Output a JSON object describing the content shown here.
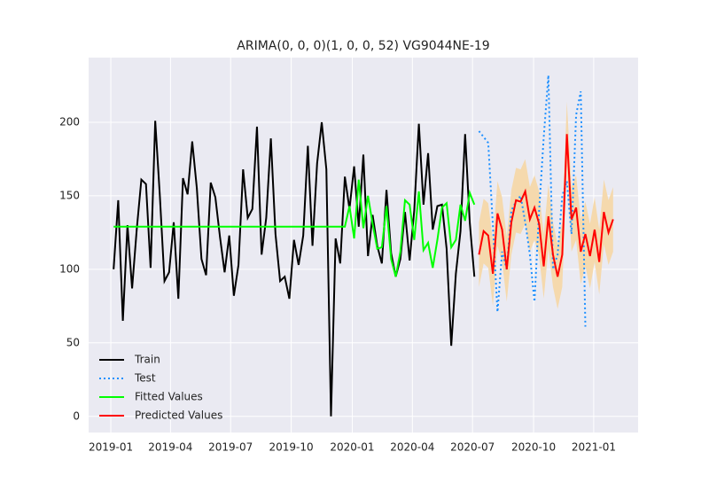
{
  "chart_data": {
    "type": "line",
    "title": "ARIMA(0, 0, 0)(1, 0, 0, 52) VG9044NE-19",
    "x": [
      0,
      1,
      2,
      3,
      4,
      5,
      6,
      7,
      8,
      9,
      10,
      11,
      12,
      13,
      14,
      15,
      16,
      17,
      18,
      19,
      20,
      21,
      22,
      23,
      24,
      25,
      26,
      27,
      28,
      29,
      30,
      31,
      32,
      33,
      34,
      35,
      36,
      37,
      38,
      39,
      40,
      41,
      42,
      43,
      44,
      45,
      46,
      47,
      48,
      49,
      50,
      51,
      52,
      53,
      54,
      55,
      56,
      57,
      58,
      59,
      60,
      61,
      62,
      63,
      64,
      65,
      66,
      67,
      68,
      69,
      70,
      71,
      72,
      73,
      74,
      75,
      76,
      77,
      78,
      79,
      80,
      81,
      82,
      83,
      84,
      85,
      86,
      87,
      88,
      89,
      90,
      91,
      92,
      93,
      94,
      95,
      96,
      97,
      98,
      99,
      100,
      101,
      102,
      103,
      104,
      105,
      106,
      107,
      108
    ],
    "series": [
      {
        "name": "Train",
        "color": "#000000",
        "dash": "solid",
        "values": [
          100,
          147,
          65,
          130,
          87,
          127,
          161,
          158,
          101,
          201,
          150,
          92,
          98,
          132,
          80,
          162,
          151,
          187,
          155,
          107,
          96,
          159,
          149,
          122,
          98,
          123,
          82,
          103,
          168,
          135,
          141,
          197,
          110,
          135,
          189,
          124,
          92,
          95,
          80,
          120,
          103,
          123,
          184,
          116,
          172,
          200,
          168,
          0,
          121,
          104,
          163,
          141,
          170,
          129,
          178,
          109,
          137,
          116,
          104,
          154,
          111,
          95,
          107,
          139,
          106,
          140,
          199,
          144,
          179,
          127,
          143,
          144,
          114,
          48,
          97,
          126,
          192,
          132,
          95,
          null,
          null,
          null,
          null,
          null,
          null,
          null,
          null,
          null,
          null,
          null,
          null,
          null,
          null,
          null,
          null,
          null,
          null,
          null,
          null,
          null,
          null,
          null,
          null,
          null,
          null,
          null,
          null,
          null,
          null
        ]
      },
      {
        "name": "Test",
        "color": "#1e90ff",
        "dash": "dotted",
        "values": [
          null,
          null,
          null,
          null,
          null,
          null,
          null,
          null,
          null,
          null,
          null,
          null,
          null,
          null,
          null,
          null,
          null,
          null,
          null,
          null,
          null,
          null,
          null,
          null,
          null,
          null,
          null,
          null,
          null,
          null,
          null,
          null,
          null,
          null,
          null,
          null,
          null,
          null,
          null,
          null,
          null,
          null,
          null,
          null,
          null,
          null,
          null,
          null,
          null,
          null,
          null,
          null,
          null,
          null,
          null,
          null,
          null,
          null,
          null,
          null,
          null,
          null,
          null,
          null,
          null,
          null,
          null,
          null,
          null,
          null,
          null,
          null,
          null,
          null,
          null,
          null,
          null,
          null,
          null,
          194,
          190,
          186,
          130,
          71,
          112,
          100,
          140,
          146,
          150,
          132,
          110,
          78,
          140,
          190,
          232,
          100,
          110,
          150,
          160,
          124,
          205,
          221,
          61,
          null,
          null,
          null,
          null,
          null,
          null
        ]
      },
      {
        "name": "Fitted Values",
        "color": "#00ff00",
        "dash": "solid",
        "values": [
          129,
          129,
          129,
          129,
          129,
          129,
          129,
          129,
          129,
          129,
          129,
          129,
          129,
          129,
          129,
          129,
          129,
          129,
          129,
          129,
          129,
          129,
          129,
          129,
          129,
          129,
          129,
          129,
          129,
          129,
          129,
          129,
          129,
          129,
          129,
          129,
          129,
          129,
          129,
          129,
          129,
          129,
          129,
          129,
          129,
          129,
          129,
          129,
          129,
          129,
          129,
          143,
          121,
          161,
          128,
          150,
          131,
          114,
          115,
          143,
          107,
          95,
          112,
          147,
          144,
          120,
          153,
          113,
          118,
          101,
          120,
          142,
          145,
          115,
          120,
          144,
          133,
          152,
          144,
          null,
          null,
          null,
          null,
          null,
          null,
          null,
          null,
          null,
          null,
          null,
          null,
          null,
          null,
          null,
          null,
          null,
          null,
          null,
          null,
          null,
          null,
          null,
          null,
          null,
          null,
          null,
          null,
          null,
          null
        ]
      },
      {
        "name": "Predicted Values",
        "color": "#ff0000",
        "dash": "solid",
        "band_color": "#f5d9ad",
        "values": [
          null,
          null,
          null,
          null,
          null,
          null,
          null,
          null,
          null,
          null,
          null,
          null,
          null,
          null,
          null,
          null,
          null,
          null,
          null,
          null,
          null,
          null,
          null,
          null,
          null,
          null,
          null,
          null,
          null,
          null,
          null,
          null,
          null,
          null,
          null,
          null,
          null,
          null,
          null,
          null,
          null,
          null,
          null,
          null,
          null,
          null,
          null,
          null,
          null,
          null,
          null,
          null,
          null,
          null,
          null,
          null,
          null,
          null,
          null,
          null,
          null,
          null,
          null,
          null,
          null,
          null,
          null,
          null,
          null,
          null,
          null,
          null,
          null,
          null,
          null,
          null,
          null,
          null,
          null,
          110,
          126,
          123,
          97,
          138,
          127,
          100,
          132,
          147,
          146,
          153,
          134,
          142,
          131,
          102,
          136,
          110,
          95,
          110,
          192,
          134,
          142,
          112,
          124,
          109,
          127,
          105,
          139,
          125,
          134
        ],
        "lower": [
          null,
          null,
          null,
          null,
          null,
          null,
          null,
          null,
          null,
          null,
          null,
          null,
          null,
          null,
          null,
          null,
          null,
          null,
          null,
          null,
          null,
          null,
          null,
          null,
          null,
          null,
          null,
          null,
          null,
          null,
          null,
          null,
          null,
          null,
          null,
          null,
          null,
          null,
          null,
          null,
          null,
          null,
          null,
          null,
          null,
          null,
          null,
          null,
          null,
          null,
          null,
          null,
          null,
          null,
          null,
          null,
          null,
          null,
          null,
          null,
          null,
          null,
          null,
          null,
          null,
          null,
          null,
          null,
          null,
          null,
          null,
          null,
          null,
          null,
          null,
          null,
          null,
          null,
          null,
          88,
          104,
          101,
          75,
          116,
          105,
          78,
          110,
          125,
          124,
          131,
          112,
          120,
          109,
          80,
          114,
          88,
          73,
          88,
          170,
          112,
          120,
          90,
          102,
          87,
          105,
          83,
          117,
          103,
          112
        ],
        "upper": [
          null,
          null,
          null,
          null,
          null,
          null,
          null,
          null,
          null,
          null,
          null,
          null,
          null,
          null,
          null,
          null,
          null,
          null,
          null,
          null,
          null,
          null,
          null,
          null,
          null,
          null,
          null,
          null,
          null,
          null,
          null,
          null,
          null,
          null,
          null,
          null,
          null,
          null,
          null,
          null,
          null,
          null,
          null,
          null,
          null,
          null,
          null,
          null,
          null,
          null,
          null,
          null,
          null,
          null,
          null,
          null,
          null,
          null,
          null,
          null,
          null,
          null,
          null,
          null,
          null,
          null,
          null,
          null,
          null,
          null,
          null,
          null,
          null,
          null,
          null,
          null,
          null,
          null,
          null,
          132,
          148,
          145,
          119,
          160,
          149,
          122,
          154,
          169,
          168,
          175,
          156,
          164,
          153,
          124,
          158,
          132,
          117,
          132,
          214,
          156,
          164,
          134,
          146,
          131,
          149,
          127,
          161,
          147,
          156
        ]
      }
    ],
    "xlim": [
      -5.4,
      113.4
    ],
    "xticks": [
      {
        "value": -0.6,
        "label": "2019-01"
      },
      {
        "value": 12.3,
        "label": "2019-04"
      },
      {
        "value": 25.3,
        "label": "2019-07"
      },
      {
        "value": 38.4,
        "label": "2019-10"
      },
      {
        "value": 51.6,
        "label": "2020-01"
      },
      {
        "value": 64.6,
        "label": "2020-04"
      },
      {
        "value": 77.6,
        "label": "2020-07"
      },
      {
        "value": 90.8,
        "label": "2020-10"
      },
      {
        "value": 103.8,
        "label": "2021-01"
      }
    ],
    "ylim": [
      -11,
      244
    ],
    "yticks": [
      0,
      50,
      100,
      150,
      200
    ],
    "grid": true,
    "legend": "lower left"
  }
}
